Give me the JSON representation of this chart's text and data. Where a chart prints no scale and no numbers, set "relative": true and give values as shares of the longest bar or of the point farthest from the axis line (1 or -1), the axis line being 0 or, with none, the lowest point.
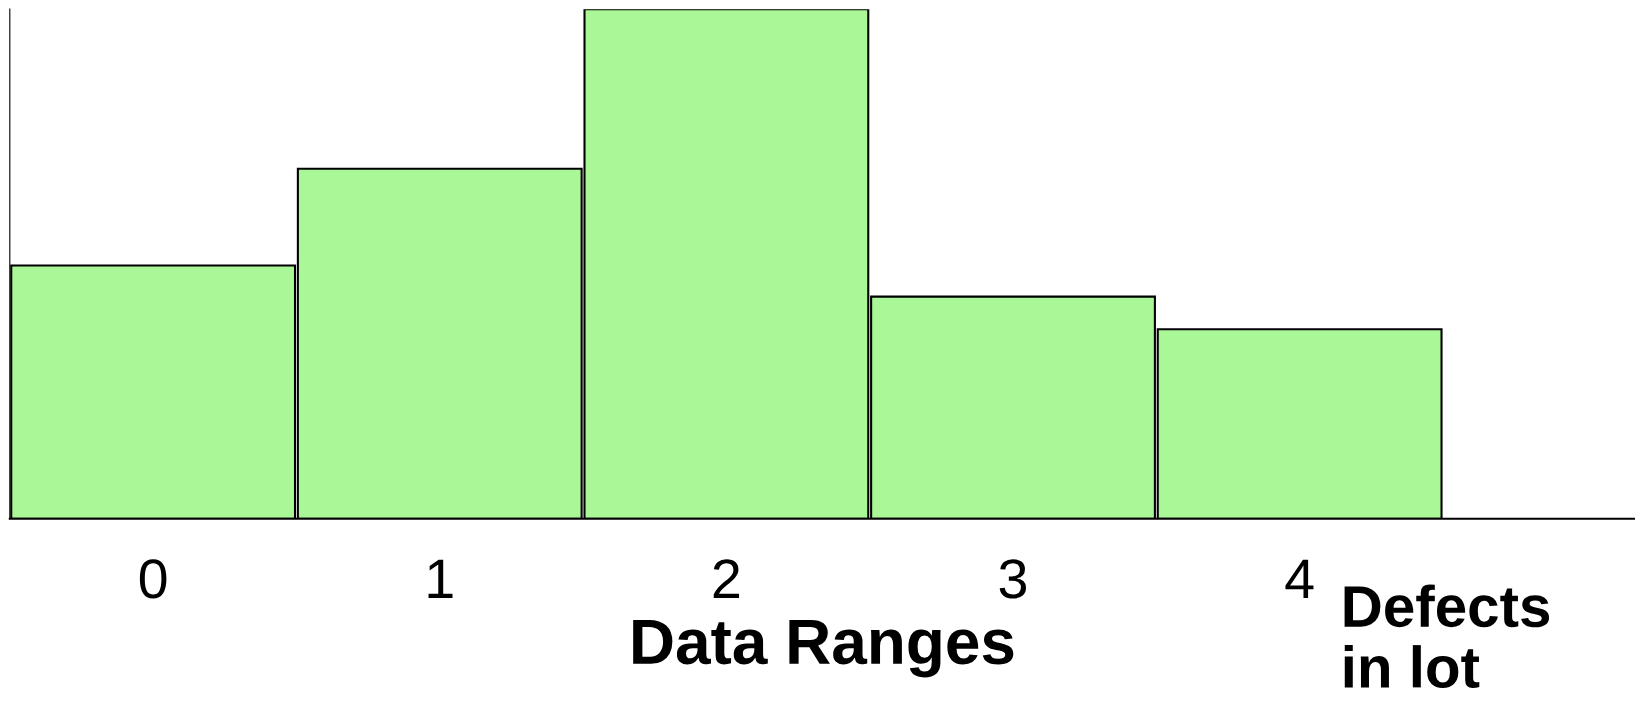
{
  "chart_data": {
    "type": "bar",
    "relative": true,
    "categories": [
      "0",
      "1",
      "2",
      "3",
      "4"
    ],
    "values": [
      0.497,
      0.687,
      1,
      0.436,
      0.372
    ],
    "color": "#aaf797",
    "xlabel": "Data Ranges",
    "annotations": [
      "Defects\nin lot"
    ],
    "tick_labels": "x",
    "grid": false,
    "legend": false
  }
}
